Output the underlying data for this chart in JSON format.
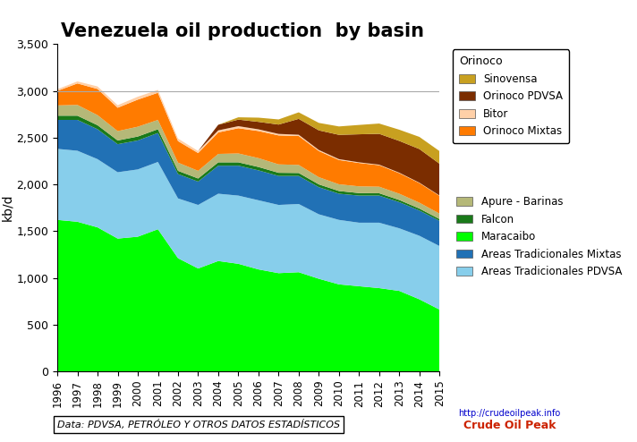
{
  "title": "Venezuela oil production  by basin",
  "ylabel": "kb/d",
  "years": [
    1996,
    1997,
    1998,
    1999,
    2000,
    2001,
    2002,
    2003,
    2004,
    2005,
    2006,
    2007,
    2008,
    2009,
    2010,
    2011,
    2012,
    2013,
    2014,
    2015
  ],
  "series": {
    "Maracaibo": [
      1620,
      1600,
      1540,
      1420,
      1440,
      1520,
      1210,
      1100,
      1180,
      1150,
      1090,
      1050,
      1060,
      990,
      930,
      910,
      890,
      860,
      770,
      660
    ],
    "Areas Tradicionales PDVSA": [
      760,
      760,
      730,
      710,
      720,
      720,
      640,
      680,
      720,
      730,
      740,
      730,
      730,
      690,
      690,
      680,
      700,
      670,
      680,
      680
    ],
    "Areas Tradicionales Mixtas": [
      310,
      330,
      320,
      300,
      310,
      310,
      260,
      250,
      300,
      320,
      320,
      310,
      300,
      290,
      280,
      290,
      290,
      280,
      270,
      270
    ],
    "Falcon": [
      45,
      45,
      43,
      40,
      42,
      40,
      35,
      33,
      36,
      36,
      36,
      34,
      32,
      30,
      29,
      27,
      25,
      23,
      21,
      19
    ],
    "Apure - Barinas": [
      110,
      115,
      108,
      100,
      105,
      100,
      88,
      82,
      90,
      95,
      95,
      90,
      86,
      77,
      72,
      72,
      70,
      67,
      63,
      58
    ],
    "Orinoco Mixtas": [
      155,
      230,
      280,
      250,
      290,
      290,
      230,
      190,
      230,
      270,
      290,
      310,
      310,
      280,
      260,
      250,
      230,
      220,
      210,
      190
    ],
    "Bitor": [
      18,
      22,
      27,
      27,
      31,
      31,
      27,
      22,
      22,
      22,
      18,
      16,
      13,
      11,
      9,
      7,
      6,
      5,
      4,
      4
    ],
    "Orinoco PDVSA": [
      0,
      0,
      0,
      0,
      0,
      0,
      0,
      0,
      60,
      70,
      80,
      100,
      170,
      210,
      260,
      300,
      330,
      340,
      360,
      340
    ],
    "Sinovensa": [
      0,
      0,
      0,
      0,
      0,
      0,
      0,
      0,
      0,
      25,
      45,
      55,
      70,
      80,
      90,
      100,
      110,
      120,
      130,
      135
    ]
  },
  "colors": {
    "Maracaibo": "#00FF00",
    "Areas Tradicionales PDVSA": "#87CEEB",
    "Areas Tradicionales Mixtas": "#2171B5",
    "Falcon": "#1A7A1A",
    "Apure - Barinas": "#B5B878",
    "Orinoco Mixtas": "#FF7B00",
    "Bitor": "#FFD0A8",
    "Orinoco PDVSA": "#7B2D00",
    "Sinovensa": "#C8A020"
  },
  "legend_orinoco": [
    "Sinovensa",
    "Orinoco PDVSA",
    "Bitor",
    "Orinoco Mixtas"
  ],
  "legend_other": [
    "Apure - Barinas",
    "Falcon",
    "Maracaibo",
    "Areas Tradicionales Mixtas",
    "Areas Tradicionales PDVSA"
  ],
  "ylim": [
    0,
    3500
  ],
  "yticks": [
    0,
    500,
    1000,
    1500,
    2000,
    2500,
    3000,
    3500
  ],
  "background_color": "#FFFFFF",
  "grid_color": "#AAAAAA",
  "orinoco_box_label": "Orinoco",
  "source_text": "Data: PDVSA, PETRÓLEO Y OTROS DATOS ESTADÍSTICOS",
  "title_fontsize": 15,
  "axis_label_fontsize": 10
}
